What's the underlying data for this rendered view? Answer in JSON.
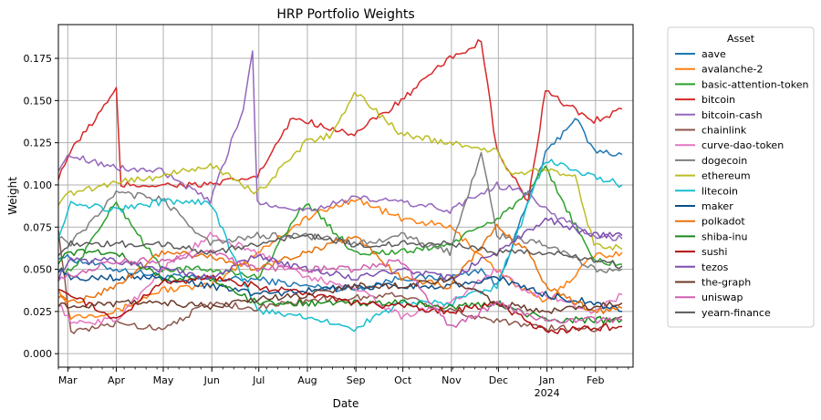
{
  "chart_data": {
    "type": "line",
    "title": "HRP Portfolio Weights",
    "xlabel": "Date",
    "ylabel": "Weight",
    "x_ticks": [
      "Mar",
      "Apr",
      "May",
      "Jun",
      "Jul",
      "Aug",
      "Sep",
      "Oct",
      "Nov",
      "Dec",
      "Jan",
      "Feb"
    ],
    "x_tick_year_label": "2024",
    "x_tick_year_under": "Jan",
    "y_ticks": [
      "0.000",
      "0.025",
      "0.050",
      "0.075",
      "0.100",
      "0.125",
      "0.150",
      "0.175"
    ],
    "ylim": [
      -0.008,
      0.195
    ],
    "xlim": [
      "2023-02-23",
      "2024-02-25"
    ],
    "grid": true,
    "legend_title": "Asset",
    "legend_position": "outside-right",
    "series": [
      {
        "name": "aave",
        "color": "#1f77b4",
        "values": [
          [
            0,
            0.058
          ],
          [
            37,
            0.05
          ],
          [
            66,
            0.046
          ],
          [
            97,
            0.044
          ],
          [
            127,
            0.044
          ],
          [
            158,
            0.04
          ],
          [
            189,
            0.038
          ],
          [
            219,
            0.045
          ],
          [
            250,
            0.045
          ],
          [
            270,
            0.05
          ],
          [
            280,
            0.04
          ],
          [
            311,
            0.118
          ],
          [
            330,
            0.14
          ],
          [
            342,
            0.12
          ],
          [
            360,
            0.118
          ]
        ]
      },
      {
        "name": "avalanche-2",
        "color": "#ff7f0e",
        "values": [
          [
            0,
            0.04
          ],
          [
            8,
            0.022
          ],
          [
            37,
            0.025
          ],
          [
            66,
            0.038
          ],
          [
            97,
            0.04
          ],
          [
            127,
            0.06
          ],
          [
            158,
            0.08
          ],
          [
            189,
            0.092
          ],
          [
            219,
            0.08
          ],
          [
            250,
            0.075
          ],
          [
            280,
            0.05
          ],
          [
            290,
            0.042
          ],
          [
            311,
            0.03
          ],
          [
            342,
            0.058
          ],
          [
            360,
            0.06
          ]
        ]
      },
      {
        "name": "basic-attention-token",
        "color": "#2ca02c",
        "values": [
          [
            0,
            0.05
          ],
          [
            8,
            0.048
          ],
          [
            37,
            0.09
          ],
          [
            66,
            0.05
          ],
          [
            97,
            0.05
          ],
          [
            127,
            0.045
          ],
          [
            158,
            0.09
          ],
          [
            189,
            0.06
          ],
          [
            219,
            0.06
          ],
          [
            250,
            0.065
          ],
          [
            280,
            0.08
          ],
          [
            300,
            0.095
          ],
          [
            311,
            0.11
          ],
          [
            342,
            0.055
          ],
          [
            360,
            0.053
          ]
        ]
      },
      {
        "name": "bitcoin",
        "color": "#d62728",
        "values": [
          [
            0,
            0.105
          ],
          [
            8,
            0.12
          ],
          [
            37,
            0.156
          ],
          [
            40,
            0.1
          ],
          [
            66,
            0.1
          ],
          [
            97,
            0.1
          ],
          [
            127,
            0.105
          ],
          [
            150,
            0.14
          ],
          [
            189,
            0.13
          ],
          [
            219,
            0.15
          ],
          [
            250,
            0.175
          ],
          [
            270,
            0.185
          ],
          [
            280,
            0.12
          ],
          [
            300,
            0.09
          ],
          [
            311,
            0.155
          ],
          [
            342,
            0.138
          ],
          [
            360,
            0.145
          ]
        ]
      },
      {
        "name": "bitcoin-cash",
        "color": "#9467bd",
        "values": [
          [
            0,
            0.11
          ],
          [
            8,
            0.118
          ],
          [
            37,
            0.11
          ],
          [
            66,
            0.108
          ],
          [
            97,
            0.09
          ],
          [
            118,
            0.145
          ],
          [
            124,
            0.18
          ],
          [
            127,
            0.09
          ],
          [
            158,
            0.085
          ],
          [
            189,
            0.092
          ],
          [
            219,
            0.09
          ],
          [
            250,
            0.085
          ],
          [
            280,
            0.1
          ],
          [
            300,
            0.095
          ],
          [
            311,
            0.085
          ],
          [
            342,
            0.07
          ],
          [
            360,
            0.068
          ]
        ]
      },
      {
        "name": "chainlink",
        "color": "#8c564b",
        "values": [
          [
            0,
            0.075
          ],
          [
            8,
            0.012
          ],
          [
            37,
            0.018
          ],
          [
            66,
            0.015
          ],
          [
            97,
            0.03
          ],
          [
            127,
            0.027
          ],
          [
            158,
            0.032
          ],
          [
            189,
            0.033
          ],
          [
            219,
            0.035
          ],
          [
            250,
            0.025
          ],
          [
            280,
            0.02
          ],
          [
            311,
            0.015
          ],
          [
            342,
            0.015
          ],
          [
            360,
            0.022
          ]
        ]
      },
      {
        "name": "curve-dao-token",
        "color": "#e377c2",
        "values": [
          [
            0,
            0.03
          ],
          [
            8,
            0.018
          ],
          [
            37,
            0.02
          ],
          [
            66,
            0.05
          ],
          [
            97,
            0.07
          ],
          [
            127,
            0.06
          ],
          [
            158,
            0.045
          ],
          [
            189,
            0.04
          ],
          [
            219,
            0.022
          ],
          [
            250,
            0.03
          ],
          [
            280,
            0.05
          ],
          [
            300,
            0.035
          ],
          [
            311,
            0.035
          ],
          [
            342,
            0.025
          ],
          [
            360,
            0.035
          ]
        ]
      },
      {
        "name": "dogecoin",
        "color": "#7f7f7f",
        "values": [
          [
            0,
            0.07
          ],
          [
            8,
            0.065
          ],
          [
            37,
            0.095
          ],
          [
            66,
            0.092
          ],
          [
            97,
            0.065
          ],
          [
            127,
            0.07
          ],
          [
            158,
            0.07
          ],
          [
            189,
            0.065
          ],
          [
            219,
            0.07
          ],
          [
            250,
            0.06
          ],
          [
            270,
            0.12
          ],
          [
            280,
            0.07
          ],
          [
            311,
            0.065
          ],
          [
            342,
            0.05
          ],
          [
            360,
            0.05
          ]
        ]
      },
      {
        "name": "ethereum",
        "color": "#bcbd22",
        "values": [
          [
            0,
            0.09
          ],
          [
            8,
            0.095
          ],
          [
            37,
            0.102
          ],
          [
            66,
            0.105
          ],
          [
            97,
            0.112
          ],
          [
            127,
            0.095
          ],
          [
            158,
            0.125
          ],
          [
            175,
            0.13
          ],
          [
            189,
            0.155
          ],
          [
            219,
            0.13
          ],
          [
            250,
            0.125
          ],
          [
            280,
            0.12
          ],
          [
            290,
            0.105
          ],
          [
            311,
            0.11
          ],
          [
            330,
            0.105
          ],
          [
            342,
            0.065
          ],
          [
            360,
            0.062
          ]
        ]
      },
      {
        "name": "litecoin",
        "color": "#17becf",
        "values": [
          [
            0,
            0.07
          ],
          [
            8,
            0.09
          ],
          [
            37,
            0.085
          ],
          [
            66,
            0.09
          ],
          [
            97,
            0.09
          ],
          [
            127,
            0.025
          ],
          [
            158,
            0.022
          ],
          [
            189,
            0.015
          ],
          [
            219,
            0.03
          ],
          [
            250,
            0.03
          ],
          [
            280,
            0.04
          ],
          [
            311,
            0.115
          ],
          [
            342,
            0.105
          ],
          [
            360,
            0.1
          ]
        ]
      },
      {
        "name": "maker",
        "color": "#0b4f8a",
        "values": [
          [
            0,
            0.05
          ],
          [
            8,
            0.045
          ],
          [
            37,
            0.045
          ],
          [
            66,
            0.045
          ],
          [
            97,
            0.04
          ],
          [
            127,
            0.035
          ],
          [
            158,
            0.037
          ],
          [
            189,
            0.04
          ],
          [
            219,
            0.04
          ],
          [
            250,
            0.04
          ],
          [
            280,
            0.045
          ],
          [
            311,
            0.035
          ],
          [
            342,
            0.03
          ],
          [
            360,
            0.025
          ]
        ]
      },
      {
        "name": "polkadot",
        "color": "#e8710a",
        "values": [
          [
            0,
            0.035
          ],
          [
            8,
            0.03
          ],
          [
            37,
            0.04
          ],
          [
            66,
            0.06
          ],
          [
            97,
            0.058
          ],
          [
            127,
            0.05
          ],
          [
            158,
            0.06
          ],
          [
            189,
            0.07
          ],
          [
            219,
            0.045
          ],
          [
            250,
            0.04
          ],
          [
            280,
            0.075
          ],
          [
            300,
            0.06
          ],
          [
            311,
            0.04
          ],
          [
            342,
            0.025
          ],
          [
            360,
            0.027
          ]
        ]
      },
      {
        "name": "shiba-inu",
        "color": "#1a8a1a",
        "values": [
          [
            0,
            0.055
          ],
          [
            8,
            0.06
          ],
          [
            37,
            0.06
          ],
          [
            66,
            0.045
          ],
          [
            97,
            0.045
          ],
          [
            127,
            0.03
          ],
          [
            158,
            0.03
          ],
          [
            189,
            0.03
          ],
          [
            219,
            0.03
          ],
          [
            250,
            0.028
          ],
          [
            280,
            0.03
          ],
          [
            311,
            0.02
          ],
          [
            342,
            0.02
          ],
          [
            360,
            0.02
          ]
        ]
      },
      {
        "name": "sushi",
        "color": "#b01010",
        "values": [
          [
            0,
            0.04
          ],
          [
            8,
            0.035
          ],
          [
            37,
            0.02
          ],
          [
            66,
            0.042
          ],
          [
            97,
            0.045
          ],
          [
            127,
            0.04
          ],
          [
            158,
            0.035
          ],
          [
            189,
            0.03
          ],
          [
            219,
            0.028
          ],
          [
            250,
            0.025
          ],
          [
            280,
            0.03
          ],
          [
            311,
            0.013
          ],
          [
            342,
            0.015
          ],
          [
            360,
            0.016
          ]
        ]
      },
      {
        "name": "tezos",
        "color": "#7b4fb0",
        "values": [
          [
            0,
            0.045
          ],
          [
            8,
            0.055
          ],
          [
            37,
            0.055
          ],
          [
            66,
            0.05
          ],
          [
            97,
            0.045
          ],
          [
            127,
            0.058
          ],
          [
            158,
            0.05
          ],
          [
            189,
            0.045
          ],
          [
            219,
            0.05
          ],
          [
            250,
            0.045
          ],
          [
            280,
            0.06
          ],
          [
            311,
            0.08
          ],
          [
            342,
            0.07
          ],
          [
            360,
            0.07
          ]
        ]
      },
      {
        "name": "the-graph",
        "color": "#6b3a2a",
        "values": [
          [
            0,
            0.03
          ],
          [
            8,
            0.027
          ],
          [
            37,
            0.03
          ],
          [
            66,
            0.03
          ],
          [
            97,
            0.028
          ],
          [
            127,
            0.032
          ],
          [
            158,
            0.035
          ],
          [
            189,
            0.04
          ],
          [
            219,
            0.04
          ],
          [
            250,
            0.045
          ],
          [
            280,
            0.03
          ],
          [
            311,
            0.025
          ],
          [
            342,
            0.028
          ],
          [
            360,
            0.03
          ]
        ]
      },
      {
        "name": "uniswap",
        "color": "#d060b0",
        "values": [
          [
            0,
            0.045
          ],
          [
            8,
            0.047
          ],
          [
            37,
            0.055
          ],
          [
            66,
            0.055
          ],
          [
            97,
            0.06
          ],
          [
            127,
            0.05
          ],
          [
            158,
            0.05
          ],
          [
            189,
            0.05
          ],
          [
            219,
            0.055
          ],
          [
            250,
            0.015
          ],
          [
            280,
            0.03
          ],
          [
            311,
            0.02
          ],
          [
            342,
            0.02
          ],
          [
            360,
            0.02
          ]
        ]
      },
      {
        "name": "yearn-finance",
        "color": "#5a5a5a",
        "values": [
          [
            0,
            0.06
          ],
          [
            8,
            0.065
          ],
          [
            37,
            0.065
          ],
          [
            66,
            0.065
          ],
          [
            97,
            0.06
          ],
          [
            127,
            0.065
          ],
          [
            158,
            0.07
          ],
          [
            189,
            0.065
          ],
          [
            219,
            0.065
          ],
          [
            250,
            0.065
          ],
          [
            280,
            0.06
          ],
          [
            311,
            0.06
          ],
          [
            342,
            0.055
          ],
          [
            360,
            0.052
          ]
        ]
      }
    ]
  }
}
